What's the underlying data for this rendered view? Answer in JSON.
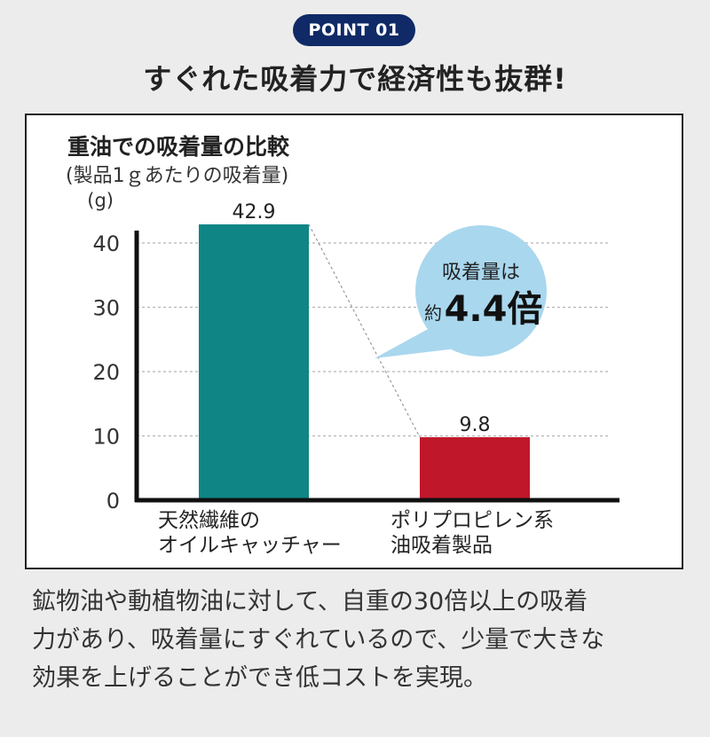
{
  "header": {
    "badge": "POINT 01",
    "headline": "すぐれた吸着力で経済性も抜群!"
  },
  "chart_data": {
    "type": "bar",
    "title": "重油での吸着量の比較",
    "subtitle": "(製品1ｇあたりの吸着量)",
    "ylabel": "(g)",
    "ylim": [
      0,
      45
    ],
    "yticks": [
      0,
      10,
      20,
      30,
      40
    ],
    "grid": true,
    "categories": [
      "天然繊維の\nオイルキャッチャー",
      "ポリプロピレン系\n油吸着製品"
    ],
    "values": [
      42.9,
      9.8
    ],
    "data_labels": [
      "42.9",
      "9.8"
    ],
    "colors": [
      "#0f8585",
      "#c0182a"
    ],
    "annotation": {
      "line1": "吸着量は",
      "prefix": "約",
      "value": "4.4倍",
      "color": "#a9d7ee"
    }
  },
  "caption": {
    "lines": [
      "鉱物油や動植物油に対して、自重の30倍以上の吸着",
      "力があり、吸着量にすぐれているので、少量で大きな",
      "効果を上げることができ低コストを実現。"
    ]
  }
}
